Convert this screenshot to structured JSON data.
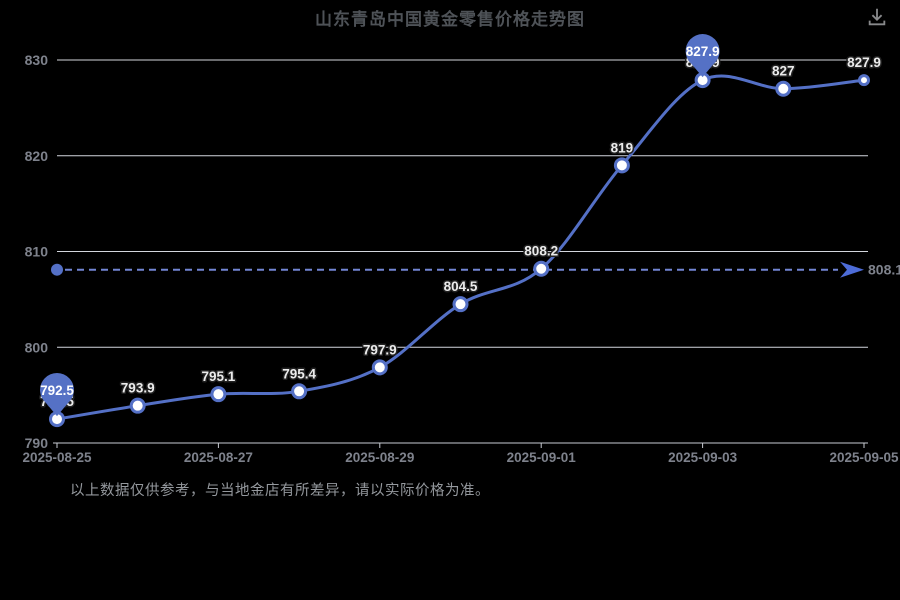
{
  "header": {
    "title": "山东青岛中国黄金零售价格走势图"
  },
  "toolbar": {
    "download_icon": "download-icon"
  },
  "note": {
    "text": "以上数据仅供参考，与当地金店有所差异，请以实际价格为准。"
  },
  "colors": {
    "background": "#000000",
    "line": "#5470c6",
    "marker_fill": "#ffffff",
    "grid": "#d3d6dd",
    "axis_line": "#c9ccd3",
    "axis_label": "#7e828c",
    "title": "#4e5257",
    "point_label": "#ececec",
    "point_label_outline": "#222222",
    "pin": "#5571c5",
    "pin_text": "#ffffff",
    "dashed_line": "#7285d4",
    "arrow": "#4d6cd8",
    "note_text": "#94989d",
    "icon": "#88898b"
  },
  "chart_data": {
    "type": "line",
    "title": "山东青岛中国黄金零售价格走势图",
    "values": [
      792.5,
      793.9,
      795.1,
      795.4,
      797.9,
      804.5,
      808.2,
      819,
      827.9,
      827,
      827.9
    ],
    "point_labels": [
      "792.5",
      "793.9",
      "795.1",
      "795.4",
      "797.9",
      "804.5",
      "808.2",
      "819",
      "827.9",
      "827",
      "827.9"
    ],
    "x_tick_labels": [
      "2025-08-25",
      "2025-08-27",
      "2025-08-29",
      "2025-09-01",
      "2025-09-03",
      "2025-09-05"
    ],
    "x_tick_every": 2,
    "y_ticks": [
      790,
      800,
      810,
      820,
      830
    ],
    "ylim": [
      790,
      830
    ],
    "grid": true,
    "legend": "none",
    "smooth": true,
    "reference_line": {
      "value": 808.1,
      "label": "808.1"
    },
    "pin_indices": [
      0,
      8
    ],
    "xlabel": "",
    "ylabel": ""
  }
}
